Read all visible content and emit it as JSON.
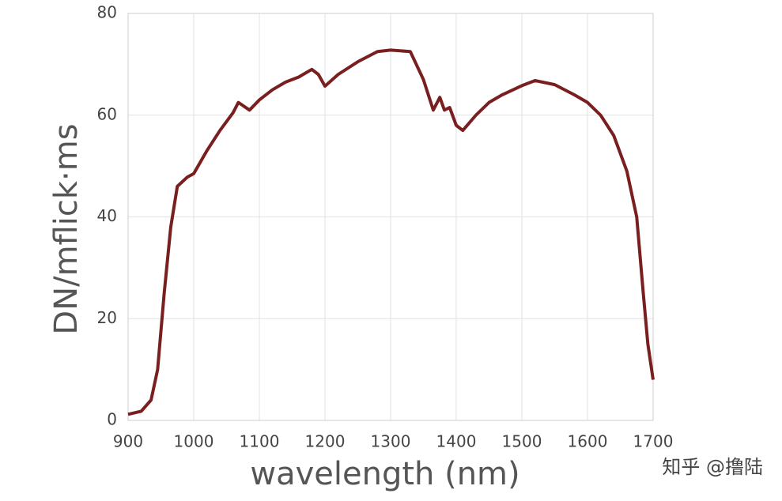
{
  "chart_data": {
    "type": "line",
    "x_label": "wavelength (nm)",
    "y_label": "DN/mflick·ms",
    "x": [
      900,
      920,
      935,
      945,
      955,
      965,
      975,
      990,
      1000,
      1020,
      1040,
      1060,
      1068,
      1085,
      1100,
      1120,
      1140,
      1160,
      1180,
      1190,
      1200,
      1220,
      1250,
      1280,
      1300,
      1330,
      1350,
      1365,
      1375,
      1382,
      1390,
      1400,
      1410,
      1430,
      1450,
      1470,
      1500,
      1520,
      1550,
      1580,
      1600,
      1620,
      1640,
      1660,
      1675,
      1685,
      1692,
      1700
    ],
    "series": [
      {
        "color": "#7a1f1f",
        "values": [
          1.2,
          1.8,
          4,
          10,
          25,
          38,
          46,
          47.8,
          48.5,
          53,
          57,
          60.5,
          62.5,
          61,
          63,
          65,
          66.5,
          67.5,
          69,
          68,
          65.7,
          68,
          70.5,
          72.5,
          72.8,
          72.5,
          67,
          61,
          63.5,
          61,
          61.5,
          58,
          57,
          60,
          62.5,
          64,
          65.8,
          66.8,
          66,
          64,
          62.5,
          60,
          56,
          49,
          40,
          25,
          15,
          8
        ]
      }
    ],
    "xlim": [
      900,
      1700
    ],
    "ylim": [
      0,
      80
    ],
    "xticks": [
      900,
      1000,
      1100,
      1200,
      1300,
      1400,
      1500,
      1600,
      1700
    ],
    "yticks": [
      0,
      20,
      40,
      60,
      80
    ],
    "grid": true,
    "watermark": "知乎 @撸陆"
  }
}
